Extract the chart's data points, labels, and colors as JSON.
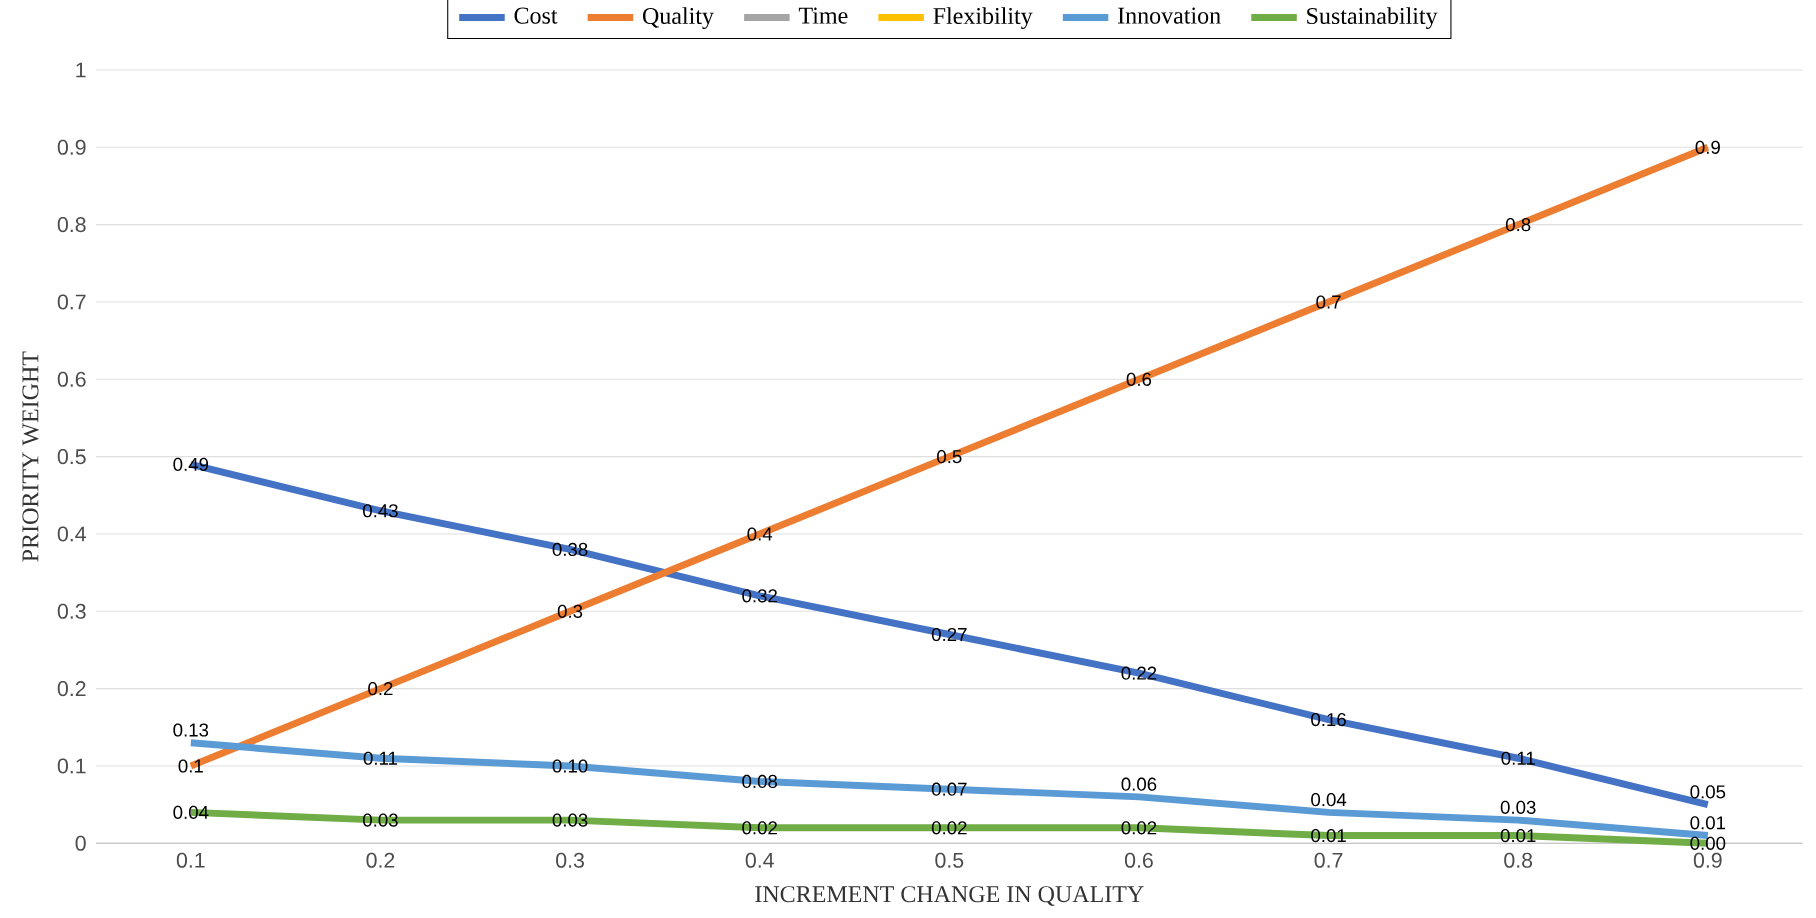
{
  "chart_data": {
    "type": "line",
    "xlabel": "INCREMENT CHANGE IN QUALITY",
    "ylabel": "PRIORITY WEIGHT",
    "categories": [
      "0.1",
      "0.2",
      "0.3",
      "0.4",
      "0.5",
      "0.6",
      "0.7",
      "0.8",
      "0.9"
    ],
    "ylim": [
      0,
      1
    ],
    "yticks": [
      0,
      0.1,
      0.2,
      0.3,
      0.4,
      0.5,
      0.6,
      0.7,
      0.8,
      0.9,
      1
    ],
    "grid": "y",
    "legend": "top",
    "marker": "none",
    "line_style": "solid",
    "series": [
      {
        "name": "Cost",
        "color": "#4472c4",
        "values": [
          0.49,
          0.43,
          0.38,
          0.32,
          0.27,
          0.22,
          0.16,
          0.11,
          0.05
        ],
        "value_labels": [
          "0.49",
          "0.43",
          "0.38",
          "0.32",
          "0.27",
          "0.22",
          "0.16",
          "0.11",
          "0.05"
        ]
      },
      {
        "name": "Quality",
        "color": "#ed7d31",
        "values": [
          0.1,
          0.2,
          0.3,
          0.4,
          0.5,
          0.6,
          0.7,
          0.8,
          0.9
        ],
        "value_labels": [
          "0.1",
          "0.2",
          "0.3",
          "0.4",
          "0.5",
          "0.6",
          "0.7",
          "0.8",
          "0.9"
        ]
      },
      {
        "name": "Time",
        "color": "#a5a5a5",
        "values": [
          null,
          null,
          null,
          null,
          null,
          null,
          null,
          null,
          null
        ]
      },
      {
        "name": "Flexibility",
        "color": "#ffc000",
        "values": [
          null,
          null,
          null,
          null,
          null,
          null,
          null,
          null,
          null
        ]
      },
      {
        "name": "Innovation",
        "color": "#5b9bd5",
        "values": [
          0.13,
          0.11,
          0.1,
          0.08,
          0.07,
          0.06,
          0.04,
          0.03,
          0.01
        ],
        "value_labels": [
          "0.13",
          "0.11",
          "0.10",
          "0.08",
          "0.07",
          "0.06",
          "0.04",
          "0.03",
          "0.01"
        ]
      },
      {
        "name": "Sustainability",
        "color": "#70ad47",
        "values": [
          0.04,
          0.03,
          0.03,
          0.02,
          0.02,
          0.02,
          0.01,
          0.01,
          0.0
        ],
        "value_labels": [
          "0.04",
          "0.03",
          "0.03",
          "0.02",
          "0.02",
          "0.02",
          "0.01",
          "0.01",
          "0.00"
        ]
      }
    ]
  }
}
